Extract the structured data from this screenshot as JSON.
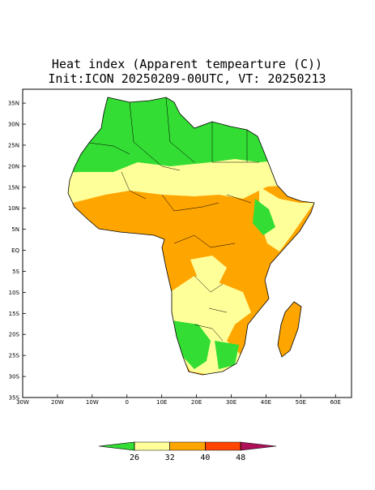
{
  "header": {
    "title": "Heat index (Apparent tempearture (C))",
    "subtitle": "Init:ICON 20250209-00UTC, VT: 20250213"
  },
  "map": {
    "lonlim": [
      -30,
      64.6
    ],
    "latlim": [
      -35,
      38.3
    ],
    "lat_ticks": [
      {
        "value": 35,
        "label": "35N"
      },
      {
        "value": 30,
        "label": "30N"
      },
      {
        "value": 25,
        "label": "25N"
      },
      {
        "value": 20,
        "label": "20N"
      },
      {
        "value": 15,
        "label": "15N"
      },
      {
        "value": 10,
        "label": "10N"
      },
      {
        "value": 5,
        "label": "5N"
      },
      {
        "value": 0,
        "label": "EQ"
      },
      {
        "value": -5,
        "label": "5S"
      },
      {
        "value": -10,
        "label": "10S"
      },
      {
        "value": -15,
        "label": "15S"
      },
      {
        "value": -20,
        "label": "20S"
      },
      {
        "value": -25,
        "label": "25S"
      },
      {
        "value": -30,
        "label": "30S"
      },
      {
        "value": -35,
        "label": "35S"
      }
    ],
    "lon_ticks": [
      {
        "value": -30,
        "label": "30W"
      },
      {
        "value": -20,
        "label": "20W"
      },
      {
        "value": -10,
        "label": "10W"
      },
      0,
      {
        "value": 10,
        "label": "10E"
      },
      {
        "value": 20,
        "label": "20E"
      },
      {
        "value": 30,
        "label": "30E"
      },
      {
        "value": 40,
        "label": "40E"
      },
      {
        "value": 50,
        "label": "50E"
      },
      {
        "value": 60,
        "label": "60E"
      }
    ]
  },
  "colorbar": {
    "levels": [
      26,
      32,
      40,
      48
    ],
    "colors": [
      "#33dd33",
      "#ffff99",
      "#ffa500",
      "#ff4500",
      "#b0105a"
    ]
  }
}
